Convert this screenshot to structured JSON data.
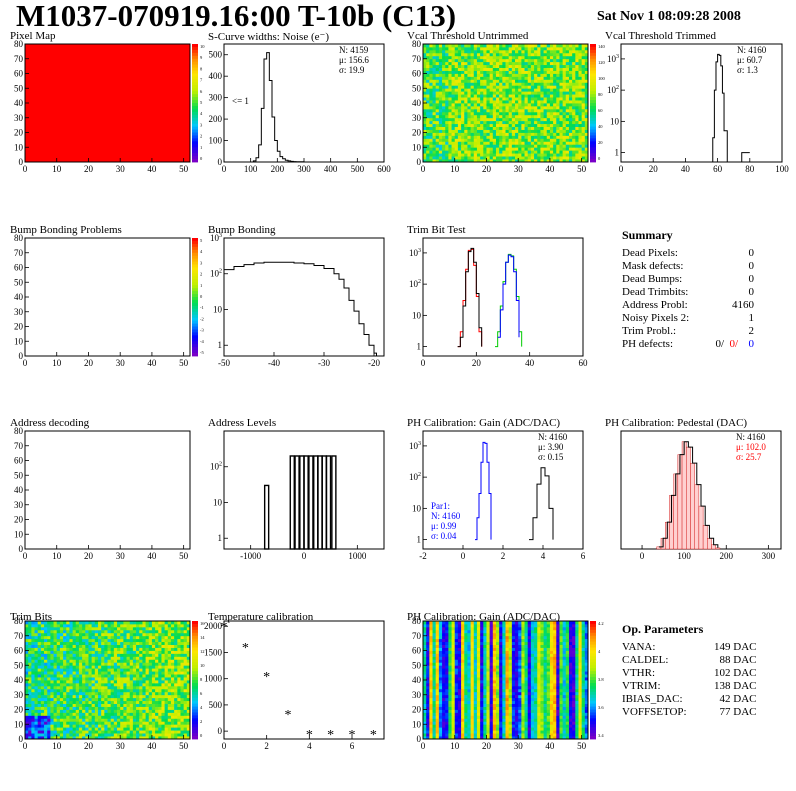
{
  "header": {
    "title": "M1037-070919.16:00 T-10b (C13)",
    "timestamp": "Sat Nov  1 08:09:28 2008"
  },
  "summary": {
    "title": "Summary",
    "rows": [
      {
        "label": "Dead Pixels:",
        "value": "0"
      },
      {
        "label": "Mask defects:",
        "value": "0"
      },
      {
        "label": "Dead Bumps:",
        "value": "0"
      },
      {
        "label": "Dead Trimbits:",
        "value": "0"
      },
      {
        "label": "Address Probl:",
        "value": "4160"
      },
      {
        "label": "Noisy Pixels 2:",
        "value": "1"
      },
      {
        "label": "Trim Probl.:",
        "value": "2"
      }
    ],
    "ph_defects": {
      "label": "PH defects:",
      "v1": "0/",
      "v2": "0/",
      "v3": "0",
      "c2": "#ff0000",
      "c3": "#0000ff"
    }
  },
  "op_parameters": {
    "title": "Op. Parameters",
    "rows": [
      {
        "label": "VANA:",
        "value": "149 DAC"
      },
      {
        "label": "CALDEL:",
        "value": "88 DAC"
      },
      {
        "label": "VTHR:",
        "value": "102 DAC"
      },
      {
        "label": "VTRIM:",
        "value": "138 DAC"
      },
      {
        "label": "IBIAS_DAC:",
        "value": "42 DAC"
      },
      {
        "label": "VOFFSETOP:",
        "value": "77 DAC"
      }
    ]
  },
  "chart_data": [
    {
      "id": "pixel-map",
      "type": "heatmap",
      "title": "Pixel Map",
      "xlim": [
        0,
        52
      ],
      "ylim": [
        0,
        80
      ],
      "xticks": [
        0,
        10,
        20,
        30,
        40,
        50
      ],
      "yticks": [
        0,
        10,
        20,
        30,
        40,
        50,
        60,
        70,
        80
      ],
      "fill": "uniform-max",
      "zticks": [
        "10",
        "9",
        "8",
        "7",
        "6",
        "5",
        "4",
        "3",
        "2",
        "1",
        "0"
      ]
    },
    {
      "id": "scurve-noise",
      "type": "line",
      "title": "S-Curve widths: Noise (e⁻)",
      "xlim": [
        0,
        600
      ],
      "ylim": [
        0,
        550
      ],
      "xticks": [
        0,
        100,
        200,
        300,
        400,
        500,
        600
      ],
      "yticks": [
        0,
        100,
        200,
        300,
        400,
        500
      ],
      "x": [
        100,
        110,
        120,
        130,
        140,
        150,
        160,
        170,
        180,
        190,
        200,
        210,
        220,
        230,
        240,
        250,
        260,
        270,
        280,
        290,
        300
      ],
      "y": [
        0,
        5,
        20,
        80,
        250,
        480,
        510,
        380,
        210,
        100,
        50,
        25,
        15,
        8,
        5,
        3,
        2,
        1,
        1,
        1,
        0
      ],
      "stats": [
        "N: 4159",
        "μ: 156.6",
        "σ: 19.9"
      ],
      "annotation": "<= 1"
    },
    {
      "id": "vcal-untrimmed",
      "type": "heatmap",
      "title": "Vcal Threshold Untrimmed",
      "xlim": [
        0,
        52
      ],
      "ylim": [
        0,
        80
      ],
      "xticks": [
        0,
        10,
        20,
        30,
        40,
        50
      ],
      "yticks": [
        0,
        10,
        20,
        30,
        40,
        50,
        60,
        70,
        80
      ],
      "fill": "noise-yellow",
      "zticks": [
        "140",
        "120",
        "100",
        "80",
        "60",
        "40",
        "20",
        "0"
      ]
    },
    {
      "id": "vcal-trimmed",
      "type": "line",
      "title": "Vcal Threshold Trimmed",
      "log_y": true,
      "xlim": [
        0,
        100
      ],
      "ylim": [
        0.5,
        3000
      ],
      "xticks": [
        0,
        20,
        40,
        60,
        80,
        100
      ],
      "yticks": [
        1,
        10,
        100,
        1000
      ],
      "x": [
        55,
        57,
        58,
        59,
        60,
        61,
        62,
        63,
        64,
        66,
        75,
        78,
        80
      ],
      "y": [
        0,
        3,
        100,
        800,
        1400,
        1300,
        600,
        80,
        5,
        0,
        1,
        1,
        1
      ],
      "stats": [
        "N: 4160",
        "μ: 60.7",
        "σ: 1.3"
      ]
    },
    {
      "id": "bump-problems",
      "type": "heatmap",
      "title": "Bump Bonding Problems",
      "xlim": [
        0,
        52
      ],
      "ylim": [
        0,
        80
      ],
      "xticks": [
        0,
        10,
        20,
        30,
        40,
        50
      ],
      "yticks": [
        0,
        10,
        20,
        30,
        40,
        50,
        60,
        70,
        80
      ],
      "fill": "empty",
      "zticks": [
        "5",
        "4",
        "3",
        "2",
        "1",
        "0",
        "-1",
        "-2",
        "-3",
        "-4",
        "-5"
      ]
    },
    {
      "id": "bump-bonding",
      "type": "line",
      "title": "Bump Bonding",
      "log_y": true,
      "xlim": [
        -50,
        -18
      ],
      "ylim": [
        0.5,
        1000
      ],
      "xticks": [
        -50,
        -40,
        -30,
        -20
      ],
      "yticks": [
        1,
        10,
        100,
        1000
      ],
      "x": [
        -50,
        -48,
        -46,
        -44,
        -42,
        -40,
        -38,
        -36,
        -34,
        -32,
        -30,
        -28,
        -27,
        -26,
        -25,
        -24,
        -23,
        -22,
        -21,
        -20,
        -19.5
      ],
      "y": [
        130,
        160,
        180,
        200,
        210,
        210,
        210,
        200,
        190,
        170,
        140,
        100,
        70,
        40,
        18,
        9,
        4,
        2,
        1,
        0.6,
        0.5
      ]
    },
    {
      "id": "trim-bit-test",
      "type": "line",
      "title": "Trim Bit Test",
      "log_y": true,
      "xlim": [
        0,
        60
      ],
      "ylim": [
        0.5,
        3000
      ],
      "xticks": [
        0,
        20,
        40,
        60
      ],
      "yticks": [
        1,
        10,
        100,
        1000
      ],
      "series": [
        {
          "color": "#ff0000",
          "x": [
            13,
            14,
            15,
            16,
            17,
            18,
            19,
            20,
            21,
            22
          ],
          "y": [
            1,
            3,
            30,
            300,
            1200,
            1300,
            400,
            40,
            3,
            1
          ]
        },
        {
          "color": "#000000",
          "x": [
            13,
            14,
            15,
            16,
            17,
            18,
            19,
            20,
            21,
            22
          ],
          "y": [
            1,
            2,
            20,
            250,
            1100,
            1400,
            500,
            50,
            4,
            1
          ]
        },
        {
          "color": "#00cc00",
          "x": [
            27,
            28,
            29,
            30,
            31,
            32,
            33,
            34,
            35,
            36,
            37
          ],
          "y": [
            1,
            3,
            20,
            120,
            500,
            900,
            800,
            300,
            40,
            3,
            1
          ]
        },
        {
          "color": "#0000ff",
          "x": [
            28,
            29,
            30,
            31,
            32,
            33,
            34,
            35,
            36
          ],
          "y": [
            2,
            15,
            100,
            500,
            850,
            750,
            250,
            30,
            2
          ]
        }
      ]
    },
    {
      "id": "address-decoding",
      "type": "heatmap",
      "title": "Address decoding",
      "xlim": [
        0,
        52
      ],
      "ylim": [
        0,
        80
      ],
      "xticks": [
        0,
        10,
        20,
        30,
        40,
        50
      ],
      "yticks": [
        0,
        10,
        20,
        30,
        40,
        50,
        60,
        70,
        80
      ],
      "fill": "empty-nopalette"
    },
    {
      "id": "address-levels",
      "type": "bar",
      "title": "Address Levels",
      "log_y": true,
      "xlim": [
        -1500,
        1500
      ],
      "ylim": [
        0.5,
        1000
      ],
      "xticks": [
        -1000,
        0,
        1000
      ],
      "yticks": [
        1,
        10,
        100
      ],
      "x": [
        -700,
        -220,
        -130,
        -40,
        40,
        130,
        220,
        300,
        380,
        460,
        560
      ],
      "y": [
        30,
        200,
        200,
        200,
        200,
        200,
        200,
        200,
        200,
        200,
        200
      ]
    },
    {
      "id": "ph-gain",
      "type": "line",
      "title": "PH Calibration: Gain (ADC/DAC)",
      "log_y": true,
      "xlim": [
        -2,
        6
      ],
      "ylim": [
        0.5,
        3000
      ],
      "xticks": [
        -2,
        0,
        2,
        4,
        6
      ],
      "yticks": [
        1,
        10,
        100,
        1000
      ],
      "series": [
        {
          "color": "#0000ff",
          "x": [
            0.6,
            0.7,
            0.8,
            0.9,
            1.0,
            1.1,
            1.2,
            1.3,
            1.4
          ],
          "y": [
            1,
            5,
            30,
            300,
            1300,
            1200,
            300,
            30,
            1
          ]
        },
        {
          "color": "#000000",
          "x": [
            3.3,
            3.5,
            3.7,
            3.9,
            4.1,
            4.3,
            4.5
          ],
          "y": [
            1,
            5,
            60,
            200,
            110,
            10,
            1
          ]
        }
      ],
      "stats": [
        "N: 4160",
        "μ: 3.90",
        "σ: 0.15"
      ],
      "stats2": [
        "Par1:",
        "N: 4160",
        "μ: 0.99",
        "σ: 0.04"
      ]
    },
    {
      "id": "ph-pedestal",
      "type": "line",
      "title": "PH Calibration: Pedestal (DAC)",
      "xlim": [
        -50,
        330
      ],
      "ylim": [
        0,
        110
      ],
      "xticks": [
        0,
        100,
        200,
        300
      ],
      "yticks": [],
      "x": [
        40,
        50,
        60,
        70,
        80,
        90,
        100,
        110,
        120,
        130,
        140,
        150,
        160,
        170,
        180
      ],
      "y": [
        2,
        10,
        25,
        50,
        70,
        88,
        100,
        95,
        80,
        60,
        40,
        22,
        10,
        4,
        1
      ],
      "stats": [
        "N: 4160",
        "μ: 102.0",
        "σ: 25.7"
      ],
      "stat_colors": [
        "#000000",
        "#ff0000",
        "#ff0000"
      ]
    },
    {
      "id": "trim-bits",
      "type": "heatmap",
      "title": "Trim Bits",
      "xlim": [
        0,
        52
      ],
      "ylim": [
        0,
        80
      ],
      "xticks": [
        0,
        10,
        20,
        30,
        40,
        50
      ],
      "yticks": [
        0,
        10,
        20,
        30,
        40,
        50,
        60,
        70,
        80
      ],
      "fill": "trimbits",
      "zticks": [
        "16",
        "14",
        "12",
        "10",
        "8",
        "6",
        "4",
        "2",
        "0"
      ]
    },
    {
      "id": "temperature-calibration",
      "type": "scatter",
      "title": "Temperature calibration",
      "xlim": [
        0,
        7.5
      ],
      "ylim": [
        -150,
        2100
      ],
      "xticks": [
        0,
        2,
        4,
        6
      ],
      "yticks": [
        0,
        500,
        1000,
        1500,
        2000
      ],
      "x": [
        0,
        1,
        2,
        3,
        4,
        5,
        6,
        7
      ],
      "y": [
        2000,
        1600,
        1050,
        330,
        -50,
        -50,
        -50,
        -50
      ]
    },
    {
      "id": "ph-gain-map",
      "type": "heatmap",
      "title": "PH Calibration: Gain (ADC/DAC)",
      "xlim": [
        0,
        52
      ],
      "ylim": [
        0,
        80
      ],
      "xticks": [
        0,
        10,
        20,
        30,
        40,
        50
      ],
      "yticks": [
        0,
        10,
        20,
        30,
        40,
        50,
        60,
        70,
        80
      ],
      "fill": "columns",
      "zticks": [
        "4.2",
        "4",
        "3.8",
        "3.6",
        "3.4"
      ]
    }
  ]
}
